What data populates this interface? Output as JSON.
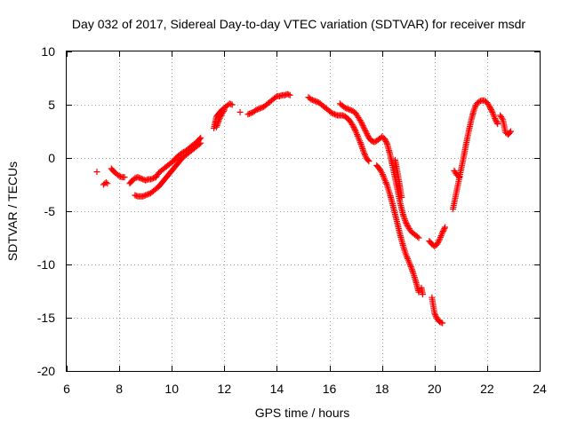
{
  "chart_data": {
    "type": "scatter",
    "title": "Day 032 of 2017, Sidereal Day-to-day VTEC variation (SDTVAR) for receiver msdr",
    "xlabel": "GPS time / hours",
    "ylabel": "SDTVAR / TECUs",
    "xlim": [
      6,
      24
    ],
    "ylim": [
      -20,
      10
    ],
    "xticks": [
      6,
      8,
      10,
      12,
      14,
      16,
      18,
      20,
      22,
      24
    ],
    "yticks": [
      -20,
      -15,
      -10,
      -5,
      0,
      5,
      10
    ],
    "grid": true,
    "marker": "+",
    "series": [
      {
        "name": "SDTVAR",
        "color": "#ff0000",
        "segments": [
          [
            [
              7.15,
              -1.3
            ]
          ],
          [
            [
              7.4,
              -2.5
            ],
            [
              7.5,
              -2.3
            ],
            [
              7.55,
              -2.4
            ]
          ],
          [
            [
              7.7,
              -1.0
            ],
            [
              7.8,
              -1.3
            ],
            [
              7.9,
              -1.5
            ],
            [
              8.0,
              -1.7
            ],
            [
              8.1,
              -1.8
            ],
            [
              8.2,
              -1.8
            ]
          ],
          [
            [
              8.4,
              -2.4
            ],
            [
              8.5,
              -2.1
            ],
            [
              8.6,
              -1.9
            ],
            [
              8.7,
              -1.8
            ],
            [
              8.8,
              -1.9
            ],
            [
              8.9,
              -2.0
            ],
            [
              9.0,
              -2.1
            ],
            [
              9.1,
              -2.0
            ],
            [
              9.2,
              -2.0
            ],
            [
              9.3,
              -1.9
            ],
            [
              9.4,
              -1.8
            ],
            [
              9.5,
              -1.4
            ],
            [
              9.6,
              -1.2
            ],
            [
              9.7,
              -1.0
            ],
            [
              9.8,
              -0.8
            ],
            [
              9.9,
              -0.6
            ],
            [
              10.0,
              -0.4
            ],
            [
              10.1,
              -0.2
            ],
            [
              10.2,
              0.1
            ],
            [
              10.3,
              0.3
            ],
            [
              10.4,
              0.5
            ],
            [
              10.5,
              0.6
            ],
            [
              10.6,
              0.8
            ],
            [
              10.7,
              1.0
            ],
            [
              10.8,
              1.2
            ],
            [
              10.9,
              1.4
            ],
            [
              11.0,
              1.6
            ],
            [
              11.1,
              1.9
            ]
          ],
          [
            [
              8.6,
              -3.5
            ],
            [
              8.7,
              -3.6
            ],
            [
              8.8,
              -3.6
            ],
            [
              8.9,
              -3.6
            ],
            [
              9.0,
              -3.5
            ],
            [
              9.1,
              -3.4
            ],
            [
              9.2,
              -3.3
            ],
            [
              9.3,
              -3.1
            ],
            [
              9.4,
              -2.9
            ],
            [
              9.5,
              -2.7
            ],
            [
              9.6,
              -2.4
            ],
            [
              9.7,
              -2.1
            ],
            [
              9.8,
              -1.8
            ],
            [
              9.9,
              -1.5
            ],
            [
              10.0,
              -1.2
            ],
            [
              10.1,
              -0.9
            ],
            [
              10.2,
              -0.6
            ],
            [
              10.3,
              -0.3
            ],
            [
              10.4,
              0.0
            ],
            [
              10.5,
              0.2
            ],
            [
              10.6,
              0.4
            ],
            [
              10.7,
              0.6
            ],
            [
              10.8,
              0.8
            ],
            [
              10.9,
              1.0
            ],
            [
              11.0,
              1.2
            ],
            [
              11.1,
              1.4
            ]
          ],
          [
            [
              11.6,
              2.8
            ],
            [
              11.65,
              3.3
            ],
            [
              11.7,
              3.9
            ],
            [
              11.8,
              4.2
            ],
            [
              11.9,
              4.5
            ],
            [
              12.0,
              4.7
            ],
            [
              12.1,
              4.9
            ],
            [
              12.2,
              5.1
            ],
            [
              12.3,
              5.0
            ]
          ],
          [
            [
              11.7,
              2.9
            ],
            [
              11.8,
              3.6
            ],
            [
              11.9,
              4.1
            ],
            [
              12.0,
              4.5
            ]
          ],
          [
            [
              12.6,
              4.3
            ]
          ],
          [
            [
              12.9,
              4.1
            ],
            [
              13.0,
              4.2
            ],
            [
              13.1,
              4.3
            ],
            [
              13.2,
              4.5
            ],
            [
              13.3,
              4.6
            ],
            [
              13.4,
              4.7
            ],
            [
              13.5,
              4.8
            ],
            [
              13.6,
              5.0
            ],
            [
              13.7,
              5.2
            ],
            [
              13.8,
              5.4
            ],
            [
              13.9,
              5.6
            ],
            [
              14.0,
              5.8
            ],
            [
              14.1,
              5.8
            ],
            [
              14.2,
              5.9
            ],
            [
              14.3,
              5.9
            ],
            [
              14.4,
              6.0
            ],
            [
              14.5,
              5.9
            ]
          ],
          [
            [
              15.2,
              5.7
            ],
            [
              15.3,
              5.5
            ],
            [
              15.4,
              5.4
            ],
            [
              15.5,
              5.3
            ],
            [
              15.6,
              5.2
            ],
            [
              15.7,
              5.0
            ],
            [
              15.8,
              4.8
            ],
            [
              15.9,
              4.6
            ],
            [
              16.0,
              4.4
            ],
            [
              16.1,
              4.2
            ],
            [
              16.2,
              4.1
            ],
            [
              16.3,
              4.0
            ],
            [
              16.4,
              4.0
            ],
            [
              16.5,
              4.0
            ],
            [
              16.6,
              3.9
            ],
            [
              16.7,
              3.7
            ],
            [
              16.8,
              3.4
            ],
            [
              16.9,
              3.0
            ],
            [
              17.0,
              2.5
            ],
            [
              17.1,
              1.9
            ],
            [
              17.2,
              1.3
            ],
            [
              17.3,
              0.6
            ],
            [
              17.4,
              0.0
            ],
            [
              17.5,
              -0.3
            ]
          ],
          [
            [
              16.4,
              5.1
            ],
            [
              16.5,
              4.9
            ],
            [
              16.6,
              4.7
            ],
            [
              16.7,
              4.6
            ],
            [
              16.8,
              4.5
            ],
            [
              16.9,
              4.4
            ],
            [
              17.0,
              4.2
            ],
            [
              17.1,
              3.8
            ],
            [
              17.2,
              3.4
            ],
            [
              17.3,
              2.9
            ],
            [
              17.4,
              2.4
            ],
            [
              17.5,
              1.9
            ],
            [
              17.6,
              1.6
            ],
            [
              17.7,
              1.5
            ],
            [
              17.8,
              1.6
            ],
            [
              17.9,
              1.8
            ],
            [
              18.0,
              2.0
            ],
            [
              18.1,
              1.8
            ],
            [
              18.2,
              1.3
            ],
            [
              18.3,
              0.4
            ],
            [
              18.4,
              -0.7
            ],
            [
              18.5,
              -1.9
            ],
            [
              18.6,
              -3.1
            ],
            [
              18.7,
              -4.3
            ],
            [
              18.8,
              -5.3
            ],
            [
              18.9,
              -6.0
            ],
            [
              19.0,
              -6.5
            ],
            [
              19.1,
              -6.9
            ],
            [
              19.2,
              -7.1
            ],
            [
              19.3,
              -7.3
            ],
            [
              19.4,
              -7.5
            ]
          ],
          [
            [
              17.8,
              -0.7
            ],
            [
              17.9,
              -1.0
            ],
            [
              18.0,
              -1.4
            ],
            [
              18.1,
              -2.0
            ],
            [
              18.2,
              -2.6
            ],
            [
              18.3,
              -3.4
            ],
            [
              18.4,
              -4.3
            ],
            [
              18.5,
              -5.3
            ],
            [
              18.6,
              -6.3
            ],
            [
              18.7,
              -7.3
            ],
            [
              18.8,
              -8.2
            ],
            [
              18.9,
              -9.0
            ],
            [
              19.0,
              -9.6
            ],
            [
              19.1,
              -10.2
            ],
            [
              19.2,
              -10.9
            ],
            [
              19.3,
              -11.7
            ],
            [
              19.4,
              -12.6
            ]
          ],
          [
            [
              18.5,
              -0.2
            ],
            [
              18.55,
              -0.8
            ],
            [
              18.6,
              -1.5
            ],
            [
              18.65,
              -2.2
            ],
            [
              18.7,
              -3.0
            ],
            [
              18.75,
              -3.7
            ]
          ],
          [
            [
              19.5,
              -12.2
            ],
            [
              19.55,
              -12.8
            ]
          ],
          [
            [
              19.9,
              -13.1
            ],
            [
              20.0,
              -14.6
            ],
            [
              20.1,
              -15.1
            ],
            [
              20.2,
              -15.4
            ],
            [
              20.3,
              -15.5
            ]
          ],
          [
            [
              19.8,
              -7.8
            ],
            [
              19.9,
              -8.1
            ],
            [
              20.0,
              -8.3
            ],
            [
              20.1,
              -8.1
            ],
            [
              20.2,
              -7.6
            ],
            [
              20.3,
              -7.0
            ],
            [
              20.4,
              -6.5
            ]
          ],
          [
            [
              20.7,
              -4.8
            ],
            [
              20.8,
              -3.6
            ],
            [
              20.9,
              -2.4
            ],
            [
              21.0,
              -1.2
            ],
            [
              21.1,
              0.0
            ],
            [
              21.2,
              1.3
            ],
            [
              21.3,
              2.5
            ],
            [
              21.4,
              3.6
            ],
            [
              21.5,
              4.5
            ],
            [
              21.6,
              5.1
            ],
            [
              21.7,
              5.3
            ],
            [
              21.8,
              5.4
            ],
            [
              21.9,
              5.4
            ],
            [
              22.0,
              5.2
            ],
            [
              22.1,
              4.8
            ],
            [
              22.2,
              4.3
            ],
            [
              22.3,
              3.7
            ],
            [
              22.4,
              3.2
            ]
          ],
          [
            [
              20.75,
              -1.2
            ],
            [
              20.85,
              -1.6
            ],
            [
              20.95,
              -1.8
            ]
          ],
          [
            [
              22.5,
              4.0
            ],
            [
              22.6,
              3.6
            ],
            [
              22.7,
              2.4
            ],
            [
              22.8,
              2.2
            ],
            [
              22.9,
              2.5
            ]
          ]
        ]
      }
    ]
  }
}
